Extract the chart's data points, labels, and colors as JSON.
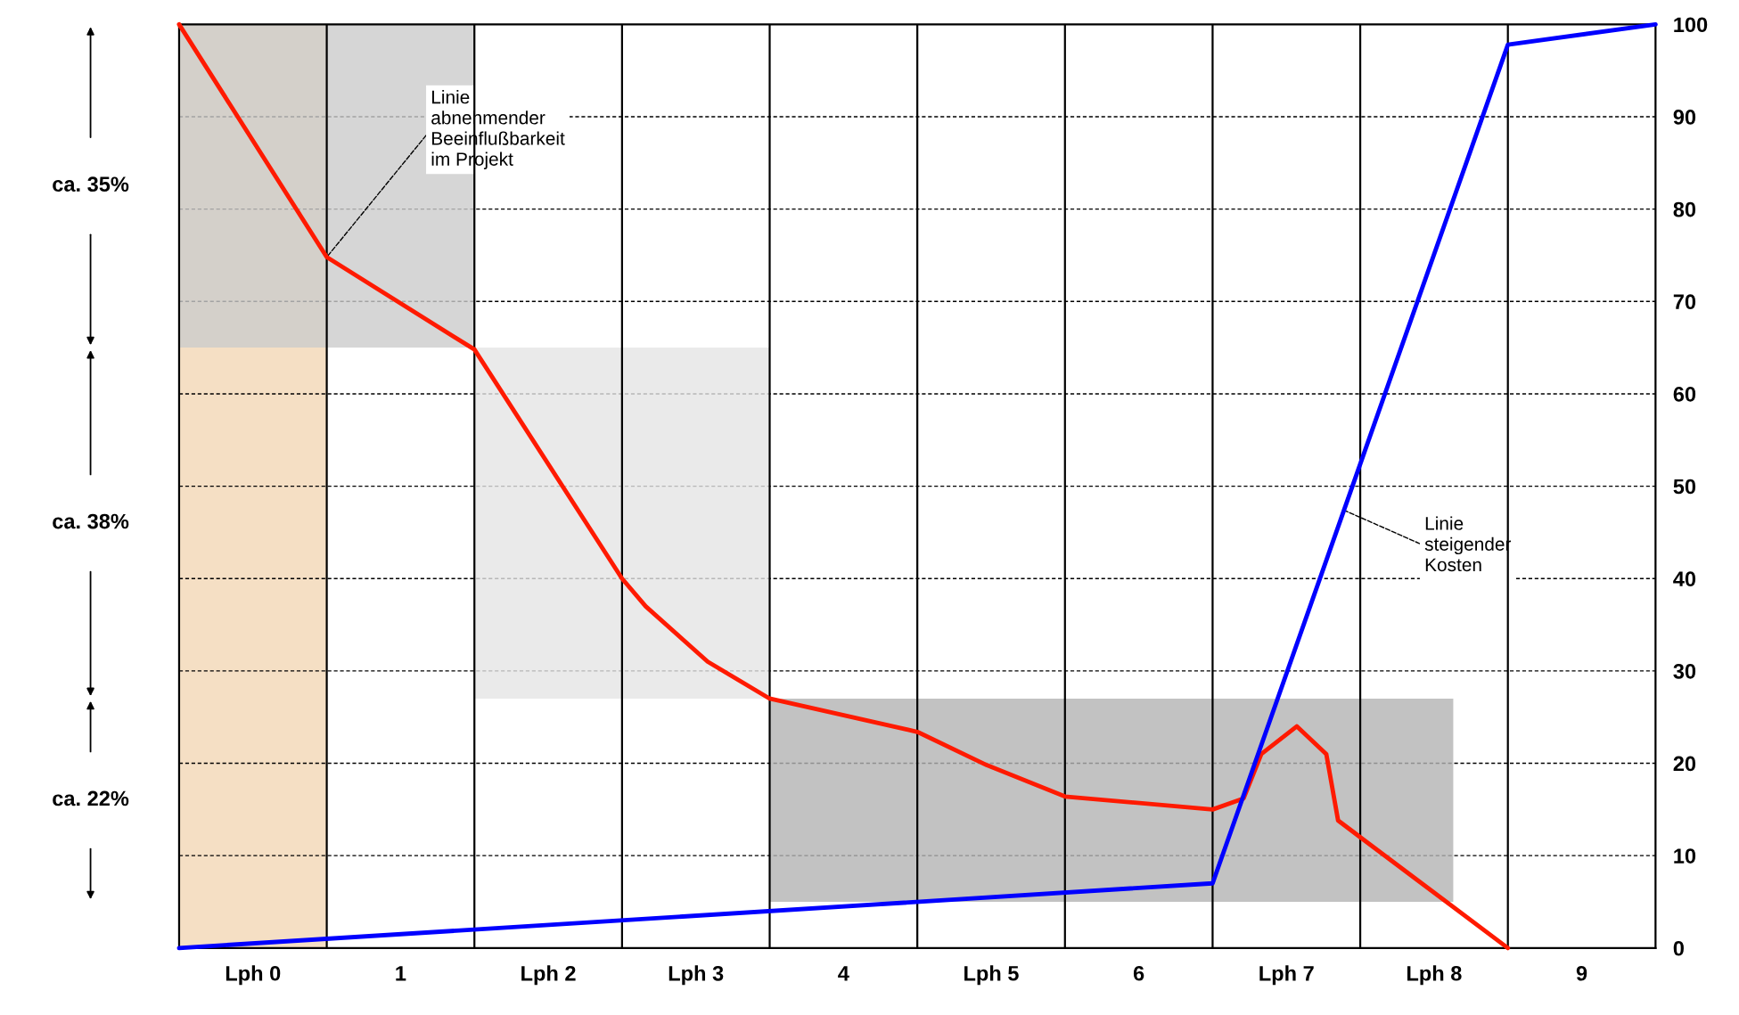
{
  "chart_data": {
    "type": "line",
    "x": [
      -0.5,
      0.5,
      1.5,
      2.5,
      2.66,
      3.08,
      3.5,
      4.5,
      4.97,
      5.5,
      6.5,
      6.71,
      6.83,
      7.07,
      7.27,
      7.35,
      7.5,
      7.9,
      8.5
    ],
    "series": [
      {
        "color": "#cccccc",
        "x": [
          -0.5,
          1.5
        ],
        "lower": [
          65,
          65
        ],
        "upper": [
          100,
          100
        ],
        "values": [
          null,
          null
        ]
      },
      {
        "color": "#e5e5e5",
        "x": [
          1.5,
          3.5
        ],
        "lower": [
          27,
          27
        ],
        "upper": [
          65,
          65
        ],
        "values": [
          null,
          null
        ]
      },
      {
        "color": "#b3b3b3",
        "x": [
          3.5,
          8.13
        ],
        "lower": [
          5,
          5
        ],
        "upper": [
          27,
          27
        ],
        "values": [
          null,
          null
        ]
      },
      {
        "color": "#ff1a00",
        "values": [
          100,
          74.8,
          64.8,
          40.0,
          37.0,
          31.0,
          27.0,
          23.4,
          19.8,
          16.4,
          15.0,
          16.2,
          21.0,
          24.0,
          21.0,
          13.8,
          12.0,
          7.2,
          0
        ]
      },
      {
        "color": "#0000ff",
        "x": [
          -0.5,
          6.5,
          8.5,
          9.5
        ],
        "values": [
          0,
          7.0,
          97.8,
          100
        ]
      }
    ],
    "xlim": [
      -0.5,
      9.5
    ],
    "xticks": [
      {
        "value": 0,
        "label": "Lph 0"
      },
      1,
      {
        "value": 2,
        "label": "Lph 2"
      },
      {
        "value": 3,
        "label": "Lph 3"
      },
      4,
      {
        "value": 5,
        "label": "Lph 5"
      },
      6,
      {
        "value": 7,
        "label": "Lph 7"
      },
      {
        "value": 8,
        "label": "Lph 8"
      },
      9
    ],
    "ylim": [
      0,
      100
    ],
    "yticks": [
      0,
      10,
      20,
      30,
      40,
      50,
      60,
      70,
      80,
      90,
      100
    ],
    "grid": "y",
    "ref_lines": [
      {
        "axis": "x",
        "value": 0.5,
        "color": "#000000"
      },
      {
        "axis": "x",
        "value": 1.5,
        "color": "#000000"
      },
      {
        "axis": "x",
        "value": 2.5,
        "color": "#000000"
      },
      {
        "axis": "x",
        "value": 3.5,
        "color": "#000000"
      },
      {
        "axis": "x",
        "value": 4.5,
        "color": "#000000"
      },
      {
        "axis": "x",
        "value": 5.5,
        "color": "#000000"
      },
      {
        "axis": "x",
        "value": 6.5,
        "color": "#000000"
      },
      {
        "axis": "x",
        "value": 7.5,
        "color": "#000000"
      },
      {
        "axis": "x",
        "value": 8.5,
        "color": "#000000"
      }
    ],
    "bands": [
      {
        "axis": "x",
        "from": -0.5,
        "to": 0.5,
        "color": "#f5dfc4"
      }
    ],
    "annotations": [
      {
        "text": "Linie\nabnehmender\nBeeinflußbarkeit\nim Projekt",
        "x": 0.5,
        "y": 74.8
      },
      {
        "text": "Linie\nsteigender\nKosten",
        "x": 7.39,
        "y": 47.4
      },
      "ca. 35%",
      "ca. 38%",
      "ca. 22%"
    ]
  }
}
